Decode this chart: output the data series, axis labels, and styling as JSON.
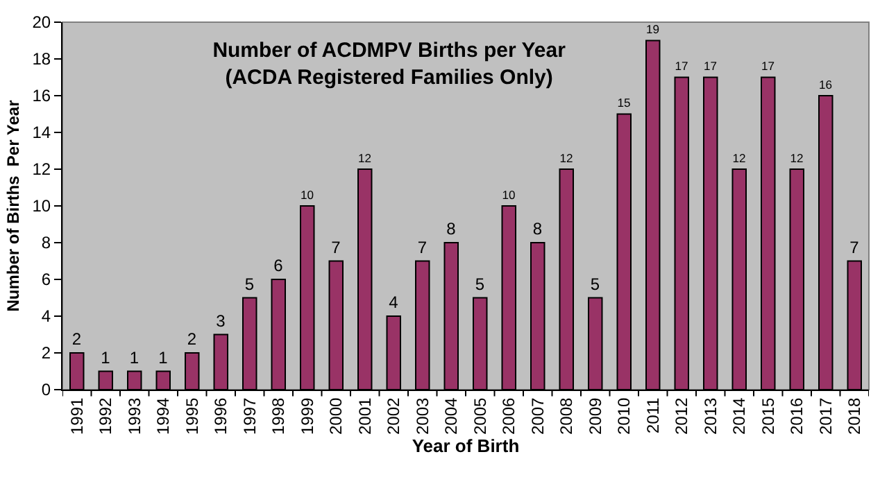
{
  "chart_data": {
    "type": "bar",
    "title": "Number of ACDMPV Births per Year\n(ACDA Registered Families Only)",
    "xlabel": "Year of Birth",
    "ylabel": "Number of Births  Per Year",
    "categories": [
      "1991",
      "1992",
      "1993",
      "1994",
      "1995",
      "1996",
      "1997",
      "1998",
      "1999",
      "2000",
      "2001",
      "2002",
      "2003",
      "2004",
      "2005",
      "2006",
      "2007",
      "2008",
      "2009",
      "2010",
      "2011",
      "2012",
      "2013",
      "2014",
      "2015",
      "2016",
      "2017",
      "2018"
    ],
    "values": [
      2,
      1,
      1,
      1,
      2,
      3,
      5,
      6,
      10,
      7,
      12,
      4,
      7,
      8,
      5,
      10,
      8,
      12,
      5,
      15,
      19,
      17,
      17,
      12,
      17,
      12,
      16,
      7
    ],
    "color": "#993366",
    "ylim": [
      0,
      20
    ],
    "yticks": [
      0,
      2,
      4,
      6,
      8,
      10,
      12,
      14,
      16,
      18,
      20
    ],
    "data_labels": true,
    "grid": false
  }
}
